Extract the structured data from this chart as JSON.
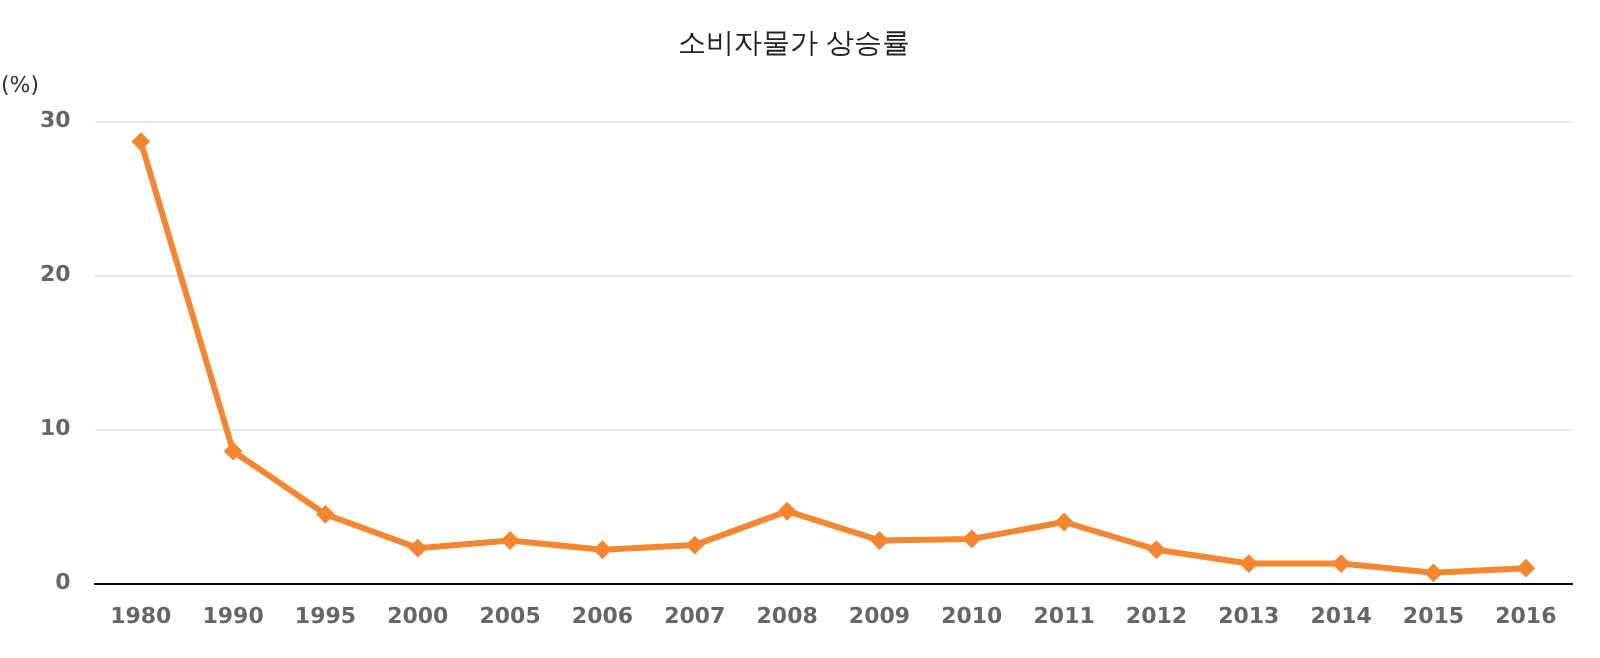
{
  "chart_data": {
    "type": "line",
    "title": "소비자물가 상승률",
    "ylabel": "(%)",
    "categories": [
      "1980",
      "1990",
      "1995",
      "2000",
      "2005",
      "2006",
      "2007",
      "2008",
      "2009",
      "2010",
      "2011",
      "2012",
      "2013",
      "2014",
      "2015",
      "2016"
    ],
    "series": [
      {
        "color": "#f5862f",
        "values": [
          28.7,
          8.6,
          4.5,
          2.3,
          2.8,
          2.2,
          2.5,
          4.7,
          2.8,
          2.9,
          4.0,
          2.2,
          1.3,
          1.3,
          0.7,
          1.0
        ]
      }
    ],
    "ylim": [
      0,
      30
    ],
    "yticks": [
      0,
      10,
      20,
      30
    ],
    "grid": "y",
    "marker": "diamond",
    "line_style": "solid",
    "legend": false
  }
}
